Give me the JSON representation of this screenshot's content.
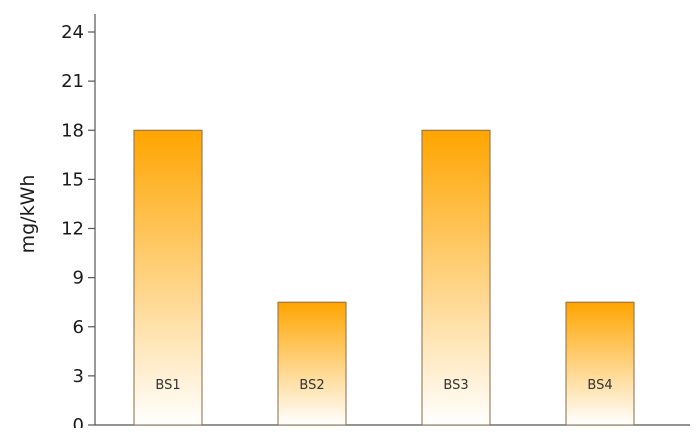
{
  "chart_data": {
    "type": "bar",
    "categories": [
      "BS1",
      "BS2",
      "BS3",
      "BS4"
    ],
    "values": [
      18,
      7.5,
      18,
      7.5
    ],
    "title": "",
    "xlabel": "",
    "ylabel": "mg/kWh",
    "ylim": [
      0,
      24
    ],
    "yticks": [
      0,
      3,
      6,
      9,
      12,
      15,
      18,
      21,
      24
    ],
    "category_labels_inside_bars": true,
    "bar_gradient": {
      "top": "#FFA500",
      "bottom": "#FFFFFF"
    },
    "grid": false,
    "legend": "none"
  }
}
